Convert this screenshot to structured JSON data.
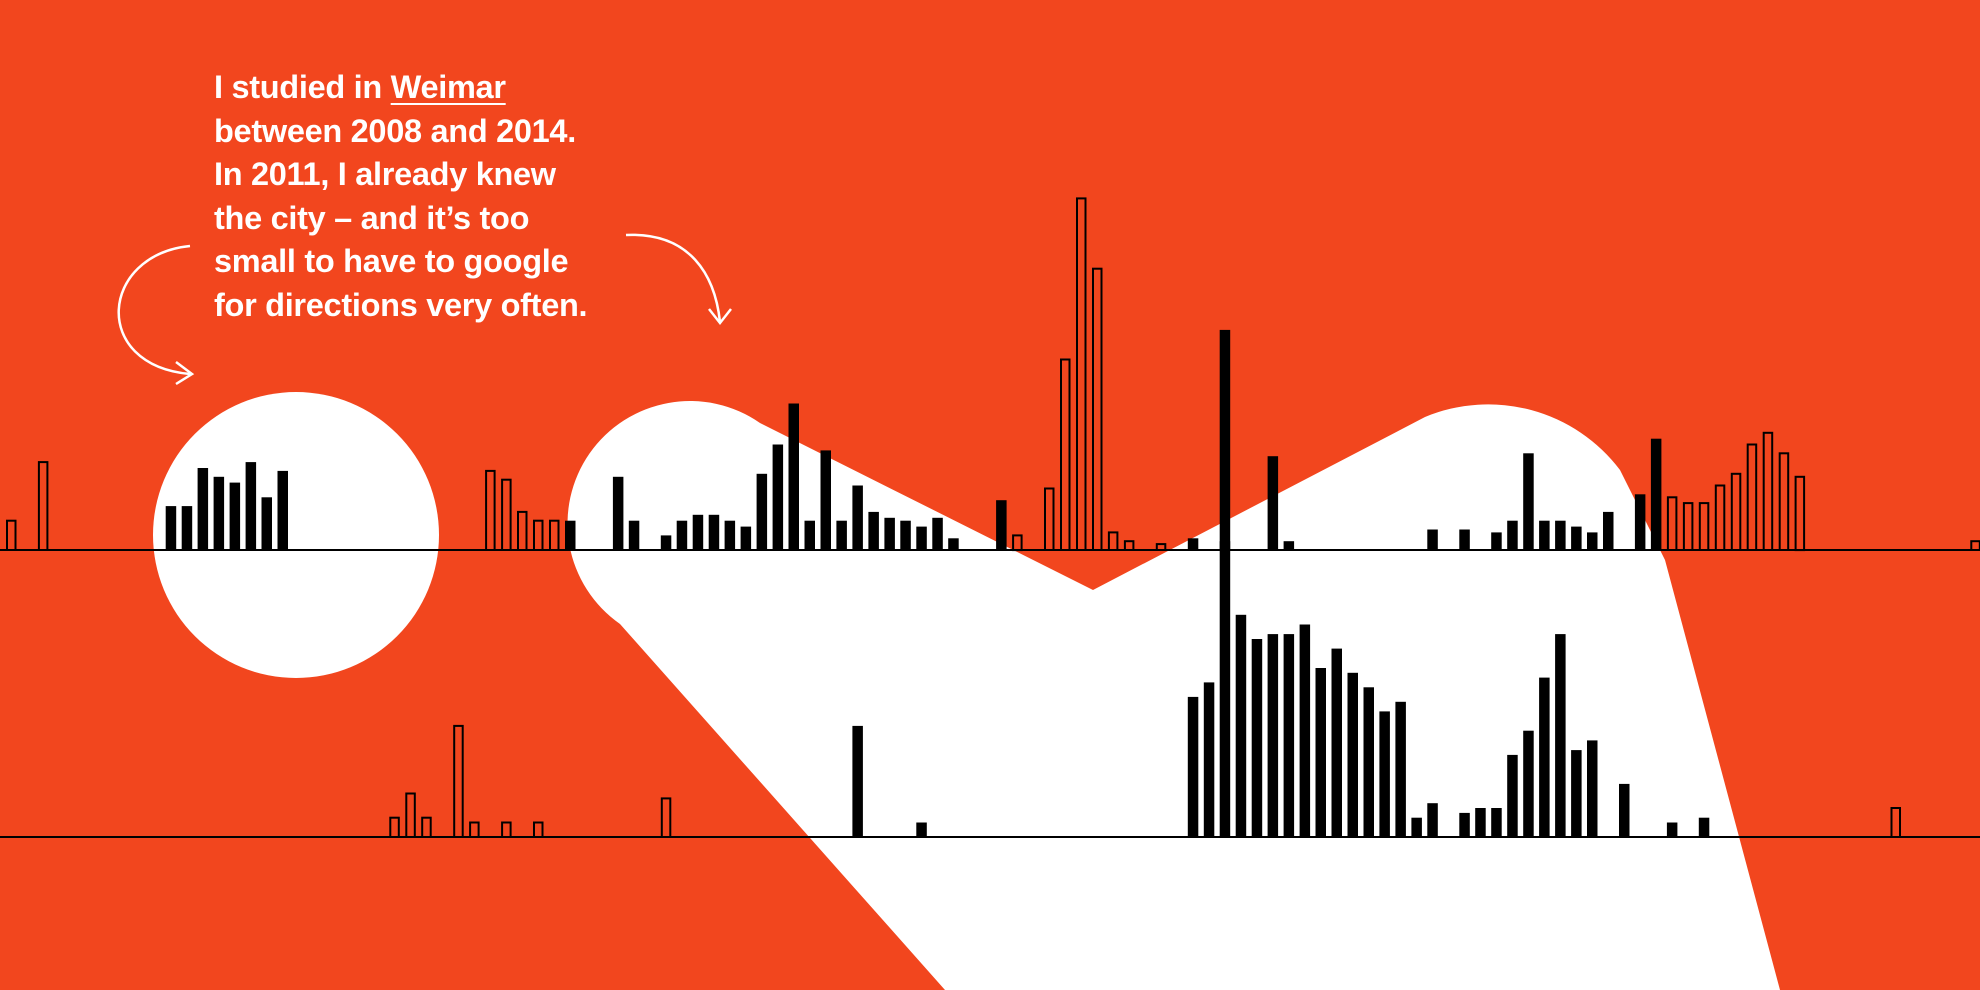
{
  "note": {
    "line1_pre": "I studied in ",
    "link": "Weimar",
    "line2": "between 2008 and 2014.",
    "line3": "In 2011, I already knew",
    "line4": "the city – and it’s too",
    "line5": "small to have to google",
    "line6": "for directions very often."
  },
  "colors": {
    "background": "#f2461e",
    "shape": "#ffffff",
    "bar": "#000000",
    "text": "#ffffff"
  },
  "icons": [
    "curved-arrow-left-icon",
    "curved-arrow-right-icon"
  ],
  "chart_data": [
    {
      "type": "bar",
      "title": "",
      "xlabel": "",
      "ylabel": "",
      "ylim": [
        0,
        12
      ],
      "grid": false,
      "values": [
        1,
        0,
        3,
        0,
        0,
        0,
        0,
        0,
        0,
        0,
        1.5,
        1.5,
        2.8,
        2.5,
        2.3,
        3,
        1.8,
        2.7,
        0,
        0,
        0,
        0,
        0,
        0,
        0,
        0,
        0,
        0,
        0,
        0,
        2.7,
        2.4,
        1.3,
        1,
        1,
        1,
        0,
        0,
        2.5,
        1,
        0,
        0.5,
        1,
        1.2,
        1.2,
        1,
        0.8,
        2.6,
        3.6,
        5,
        1,
        3.4,
        1,
        2.2,
        1.3,
        1.1,
        1,
        0.8,
        1.1,
        0.4,
        0,
        0,
        1.7,
        0.5,
        0,
        2.1,
        6.5,
        12,
        9.6,
        0.6,
        0.3,
        0,
        0.2,
        0,
        0.4,
        0,
        0.3,
        0,
        0,
        3.2,
        0.3,
        0,
        0,
        0,
        0,
        0,
        0,
        0,
        0,
        0.7,
        0,
        0.7,
        0,
        0.6,
        1,
        3.3,
        1,
        1,
        0.8,
        0.6,
        1.3,
        0,
        1.9,
        3.8,
        1.8,
        1.6,
        1.6,
        2.2,
        2.6,
        3.6,
        4,
        3.3,
        2.5,
        0,
        0,
        0,
        0,
        0,
        0,
        0,
        0,
        0,
        0,
        0.3,
        0,
        0,
        0.4,
        0,
        0,
        0,
        1,
        2.3,
        0.4,
        0.4
      ]
    },
    {
      "type": "bar",
      "title": "",
      "xlabel": "",
      "ylabel": "",
      "ylim": [
        0,
        12
      ],
      "grid": false,
      "values": [
        0,
        0,
        0,
        0,
        0,
        0,
        0,
        0,
        0,
        0,
        0,
        0,
        0,
        0,
        0,
        0,
        0,
        0,
        0,
        0,
        0,
        0,
        0,
        0,
        0.4,
        0.9,
        0.4,
        0,
        2.3,
        0.3,
        0,
        0.3,
        0,
        0.3,
        0,
        0,
        0,
        0,
        0,
        0,
        0,
        0.8,
        0,
        0,
        0,
        0,
        0,
        0,
        0,
        0,
        0,
        0,
        0,
        2.3,
        0,
        0,
        0,
        0.3,
        0,
        0,
        0,
        0,
        0,
        0,
        0,
        0,
        0,
        0,
        0,
        0,
        0,
        0,
        0,
        0,
        2.9,
        3.2,
        10.5,
        4.6,
        4.1,
        4.2,
        4.2,
        4.4,
        3.5,
        3.9,
        3.4,
        3.1,
        2.6,
        2.8,
        0.4,
        0.7,
        0,
        0.5,
        0.6,
        0.6,
        1.7,
        2.2,
        3.3,
        4.2,
        1.8,
        2,
        0,
        1.1,
        0,
        0,
        0.3,
        0,
        0.4,
        0,
        0,
        0,
        0,
        0,
        0,
        0,
        0,
        0,
        0,
        0,
        0.6,
        0,
        0,
        0,
        0,
        0,
        0,
        0,
        0,
        0,
        0,
        0,
        0,
        0,
        0,
        0,
        0,
        0,
        0,
        0,
        0,
        0,
        0,
        0,
        0,
        0,
        0,
        0,
        0,
        0,
        0,
        0,
        0,
        0,
        0
      ]
    }
  ]
}
